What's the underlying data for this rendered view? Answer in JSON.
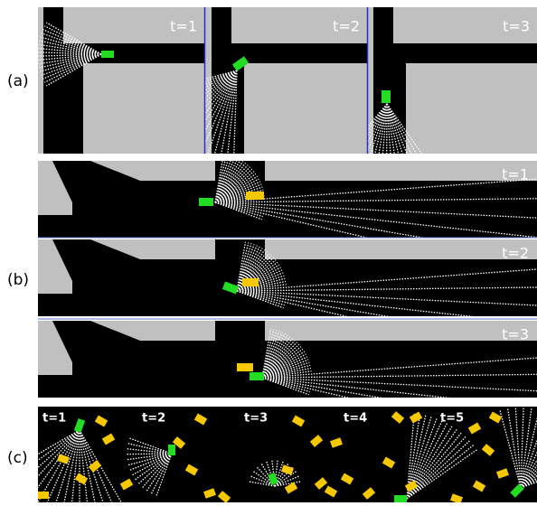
{
  "panels": [
    {
      "label": "(a)",
      "frames": [
        "t=1",
        "t=2",
        "t=3"
      ]
    },
    {
      "label": "(b)",
      "frames": [
        "t=1",
        "t=2",
        "t=3"
      ]
    },
    {
      "label": "(c)",
      "frames": [
        "t=1",
        "t=2",
        "t=3",
        "t=4",
        "t=5"
      ]
    }
  ]
}
